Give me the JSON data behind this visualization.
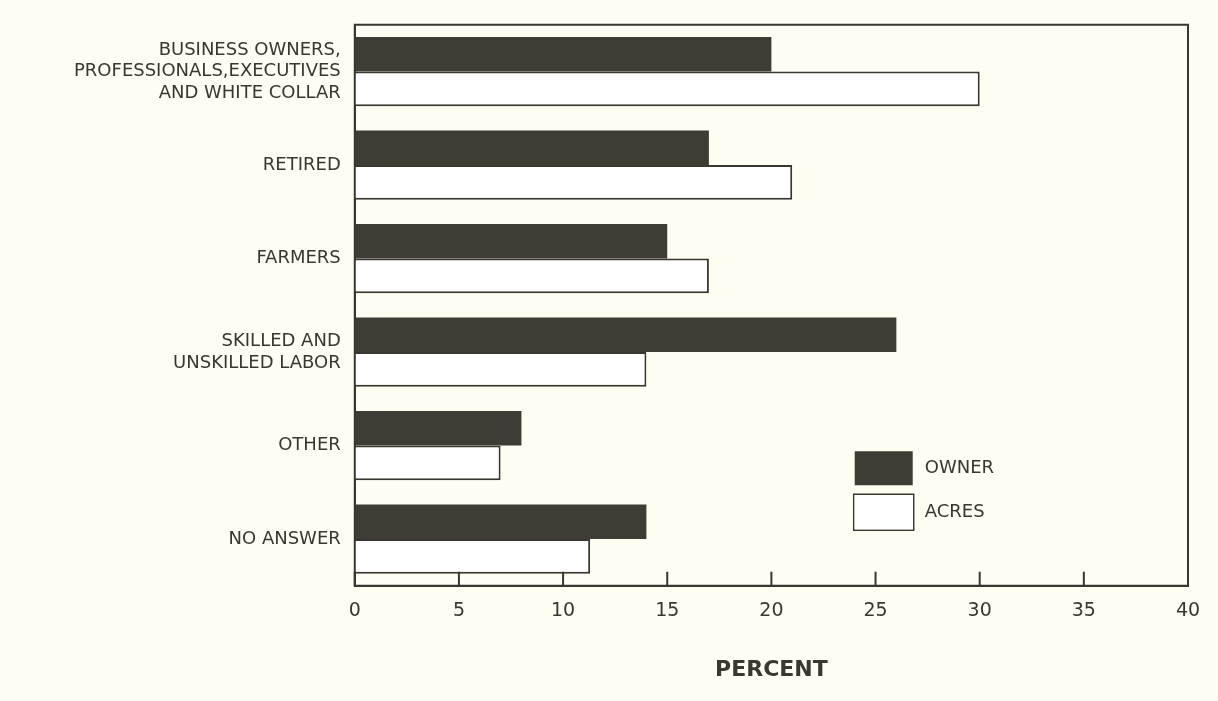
{
  "chart_data": {
    "type": "bar",
    "orientation": "horizontal",
    "xlabel": "PERCENT",
    "categories": [
      "BUSINESS OWNERS,\nPROFESSIONALS,EXECUTIVES\nAND WHITE COLLAR",
      "RETIRED",
      "FARMERS",
      "SKILLED AND\nUNSKILLED LABOR",
      "OTHER",
      "NO ANSWER"
    ],
    "series": [
      {
        "name": "OWNER",
        "color": "#3f3b35",
        "values": [
          20,
          17,
          15,
          26,
          8,
          14
        ]
      },
      {
        "name": "ACRES",
        "color": "#ffffff",
        "values": [
          30,
          21,
          17,
          14,
          7,
          11.3
        ]
      }
    ],
    "xlim": [
      0,
      40
    ],
    "xticks": [
      0,
      5,
      10,
      15,
      20,
      25,
      30,
      35,
      40
    ],
    "grid": false,
    "legend": "right"
  }
}
